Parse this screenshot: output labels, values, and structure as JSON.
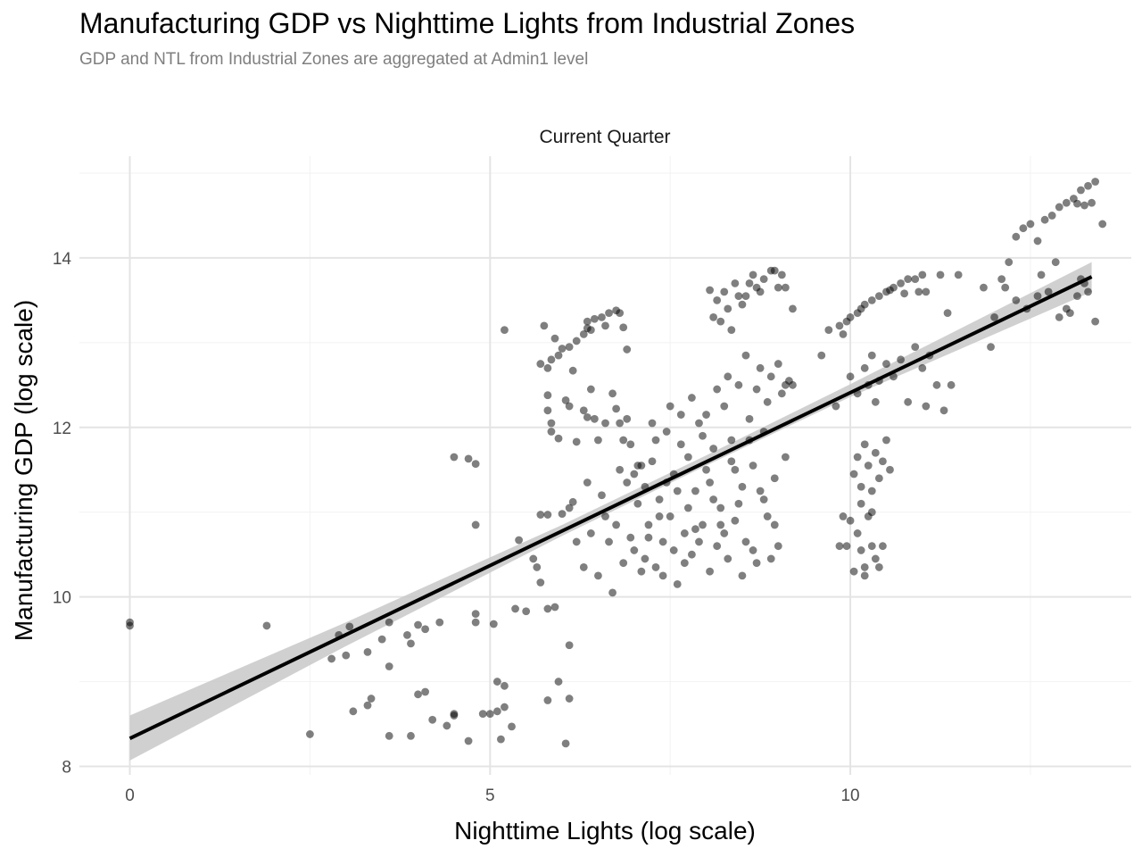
{
  "chart_data": {
    "type": "scatter",
    "title": "Manufacturing GDP vs Nighttime Lights from Industrial Zones",
    "subtitle": "GDP and NTL from Industrial Zones are aggregated at Admin1 level",
    "facet_label": "Current Quarter",
    "xlabel": "Nighttime Lights (log scale)",
    "ylabel": "Manufacturing GDP (log scale)",
    "xlim": [
      -0.7,
      13.9
    ],
    "ylim": [
      7.9,
      15.2
    ],
    "x_ticks": [
      0,
      5,
      10
    ],
    "x_tick_labels": [
      "0",
      "5",
      "10"
    ],
    "y_ticks": [
      8,
      10,
      12,
      14
    ],
    "y_tick_labels": [
      "8",
      "10",
      "12",
      "14"
    ],
    "grid": true,
    "point_color": "#000000",
    "point_alpha": 0.5,
    "regression": {
      "type": "linear",
      "x_range": [
        0,
        13.35
      ],
      "intercept": 8.33,
      "slope": 0.408,
      "ci_band": [
        {
          "x": 0,
          "lower": 8.07,
          "upper": 8.6
        },
        {
          "x": 3,
          "lower": 9.42,
          "upper": 9.7
        },
        {
          "x": 6,
          "lower": 10.72,
          "upper": 10.85
        },
        {
          "x": 8,
          "lower": 11.55,
          "upper": 11.67
        },
        {
          "x": 10,
          "lower": 12.36,
          "upper": 12.51
        },
        {
          "x": 13.35,
          "lower": 13.6,
          "upper": 13.95
        }
      ],
      "band_color": "#c8c8c8",
      "line_color": "#000000"
    },
    "points": [
      [
        0,
        9.7
      ],
      [
        0,
        9.66
      ],
      [
        1.9,
        9.66
      ],
      [
        2.5,
        8.38
      ],
      [
        2.8,
        9.27
      ],
      [
        2.9,
        9.55
      ],
      [
        3,
        9.31
      ],
      [
        3.05,
        9.65
      ],
      [
        3.1,
        8.65
      ],
      [
        3.3,
        8.72
      ],
      [
        3.35,
        8.8
      ],
      [
        3.3,
        9.35
      ],
      [
        3.5,
        9.5
      ],
      [
        3.6,
        9.7
      ],
      [
        3.6,
        9.18
      ],
      [
        3.6,
        8.36
      ],
      [
        3.85,
        9.55
      ],
      [
        3.9,
        8.36
      ],
      [
        3.9,
        9.45
      ],
      [
        4,
        9.67
      ],
      [
        4,
        8.85
      ],
      [
        4.1,
        8.88
      ],
      [
        4.1,
        9.62
      ],
      [
        4.2,
        8.55
      ],
      [
        4.3,
        9.7
      ],
      [
        4.4,
        8.48
      ],
      [
        4.5,
        8.62
      ],
      [
        4.5,
        8.6
      ],
      [
        4.5,
        11.65
      ],
      [
        4.7,
        11.63
      ],
      [
        4.7,
        8.3
      ],
      [
        4.8,
        11.57
      ],
      [
        4.8,
        10.85
      ],
      [
        4.8,
        9.8
      ],
      [
        4.8,
        9.7
      ],
      [
        4.9,
        8.62
      ],
      [
        5,
        8.62
      ],
      [
        5.05,
        9.68
      ],
      [
        5.1,
        8.65
      ],
      [
        5.2,
        8.7
      ],
      [
        5.2,
        8.95
      ],
      [
        5.1,
        9
      ],
      [
        5.3,
        8.47
      ],
      [
        5.15,
        8.32
      ],
      [
        5.35,
        9.86
      ],
      [
        5.4,
        10.67
      ],
      [
        5.5,
        9.83
      ],
      [
        5.6,
        10.45
      ],
      [
        5.65,
        10.35
      ],
      [
        5.7,
        10.17
      ],
      [
        5.7,
        10.97
      ],
      [
        5.8,
        10.97
      ],
      [
        5.8,
        9.86
      ],
      [
        5.9,
        9.88
      ],
      [
        5.8,
        8.78
      ],
      [
        5.95,
        9
      ],
      [
        6.05,
        8.27
      ],
      [
        6.1,
        9.43
      ],
      [
        6.1,
        8.8
      ],
      [
        5.2,
        13.15
      ],
      [
        5.7,
        12.75
      ],
      [
        5.75,
        13.2
      ],
      [
        5.8,
        12.7
      ],
      [
        5.85,
        12.8
      ],
      [
        5.9,
        13.05
      ],
      [
        5.95,
        12.85
      ],
      [
        6,
        12.93
      ],
      [
        6.1,
        12.95
      ],
      [
        6.15,
        12.67
      ],
      [
        6.2,
        13.02
      ],
      [
        6.3,
        13.1
      ],
      [
        6.35,
        13.17
      ],
      [
        6.35,
        13.25
      ],
      [
        6.4,
        13.15
      ],
      [
        6.45,
        13.28
      ],
      [
        6.55,
        13.3
      ],
      [
        6.6,
        13.2
      ],
      [
        6.65,
        13.35
      ],
      [
        6.75,
        13.38
      ],
      [
        6.8,
        13.35
      ],
      [
        6.85,
        13.18
      ],
      [
        6.9,
        12.92
      ],
      [
        5.8,
        12.38
      ],
      [
        5.8,
        12.2
      ],
      [
        5.85,
        12.05
      ],
      [
        5.85,
        11.95
      ],
      [
        5.95,
        11.87
      ],
      [
        6.05,
        12.32
      ],
      [
        6.1,
        12.25
      ],
      [
        6.2,
        11.83
      ],
      [
        6.3,
        12.2
      ],
      [
        6.35,
        12.12
      ],
      [
        6.4,
        12.45
      ],
      [
        6.45,
        12.1
      ],
      [
        6.5,
        11.85
      ],
      [
        6.6,
        12.05
      ],
      [
        6.7,
        12.4
      ],
      [
        6.75,
        12.22
      ],
      [
        6.8,
        12.05
      ],
      [
        6.85,
        11.85
      ],
      [
        6.9,
        12.1
      ],
      [
        6.95,
        11.8
      ],
      [
        6,
        10.98
      ],
      [
        6.1,
        11.05
      ],
      [
        6.15,
        11.12
      ],
      [
        6.2,
        10.65
      ],
      [
        6.3,
        10.35
      ],
      [
        6.35,
        11.35
      ],
      [
        6.4,
        10.75
      ],
      [
        6.5,
        10.25
      ],
      [
        6.55,
        11.2
      ],
      [
        6.6,
        10.95
      ],
      [
        6.65,
        10.65
      ],
      [
        6.7,
        10.05
      ],
      [
        6.75,
        10.85
      ],
      [
        6.8,
        11.5
      ],
      [
        6.85,
        10.4
      ],
      [
        6.9,
        11.35
      ],
      [
        6.95,
        10.7
      ],
      [
        7,
        11.45
      ],
      [
        7,
        10.55
      ],
      [
        7.05,
        11.55
      ],
      [
        7.1,
        10.3
      ],
      [
        7.15,
        11.3
      ],
      [
        7.2,
        10.85
      ],
      [
        7.25,
        11.6
      ],
      [
        7.3,
        10.35
      ],
      [
        7.35,
        11.15
      ],
      [
        7.4,
        10.65
      ],
      [
        7.45,
        11.95
      ],
      [
        7.5,
        10.95
      ],
      [
        7.55,
        11.45
      ],
      [
        7.6,
        10.15
      ],
      [
        7.65,
        11.8
      ],
      [
        7.7,
        10.75
      ],
      [
        7.75,
        11.65
      ],
      [
        7.8,
        10.5
      ],
      [
        7.85,
        11.25
      ],
      [
        7.9,
        12.05
      ],
      [
        7.95,
        10.85
      ],
      [
        8,
        11.5
      ],
      [
        8.05,
        10.3
      ],
      [
        8.1,
        11.75
      ],
      [
        8.15,
        10.6
      ],
      [
        8.2,
        11.05
      ],
      [
        8.25,
        12.25
      ],
      [
        8.3,
        10.45
      ],
      [
        8.35,
        11.85
      ],
      [
        8.4,
        10.9
      ],
      [
        8.45,
        12.5
      ],
      [
        8.5,
        11.3
      ],
      [
        8.55,
        10.65
      ],
      [
        8.6,
        12.1
      ],
      [
        8.65,
        11.55
      ],
      [
        8.7,
        10.4
      ],
      [
        8.75,
        12.7
      ],
      [
        8.8,
        11.95
      ],
      [
        8.85,
        10.95
      ],
      [
        8.9,
        12.6
      ],
      [
        8.95,
        11.4
      ],
      [
        9,
        10.6
      ],
      [
        9.05,
        12.4
      ],
      [
        9.1,
        11.65
      ],
      [
        7.05,
        11.1
      ],
      [
        7.15,
        10.45
      ],
      [
        7.25,
        12.05
      ],
      [
        7.35,
        10.95
      ],
      [
        7.45,
        11.35
      ],
      [
        7.55,
        10.55
      ],
      [
        7.65,
        12.15
      ],
      [
        7.75,
        11.05
      ],
      [
        7.85,
        10.8
      ],
      [
        7.95,
        11.9
      ],
      [
        8.05,
        11.35
      ],
      [
        8.15,
        12.45
      ],
      [
        8.25,
        10.75
      ],
      [
        8.35,
        11.6
      ],
      [
        8.45,
        11.1
      ],
      [
        8.55,
        12.85
      ],
      [
        8.65,
        10.55
      ],
      [
        8.75,
        11.25
      ],
      [
        8.85,
        12.3
      ],
      [
        8.95,
        10.85
      ],
      [
        7.1,
        11.55
      ],
      [
        7.2,
        10.7
      ],
      [
        7.3,
        11.85
      ],
      [
        7.4,
        10.25
      ],
      [
        7.5,
        12.25
      ],
      [
        7.6,
        11.25
      ],
      [
        7.7,
        10.4
      ],
      [
        7.8,
        12.35
      ],
      [
        7.9,
        10.65
      ],
      [
        8,
        12.15
      ],
      [
        8.1,
        11.15
      ],
      [
        8.2,
        10.85
      ],
      [
        8.3,
        12.6
      ],
      [
        8.4,
        11.5
      ],
      [
        8.5,
        10.25
      ],
      [
        8.6,
        11.85
      ],
      [
        8.7,
        12.45
      ],
      [
        8.8,
        11.15
      ],
      [
        8.9,
        10.45
      ],
      [
        9,
        12.75
      ],
      [
        8.1,
        13.3
      ],
      [
        8.15,
        13.5
      ],
      [
        8.2,
        13.25
      ],
      [
        8.25,
        13.6
      ],
      [
        8.3,
        13.4
      ],
      [
        8.35,
        13.15
      ],
      [
        8.4,
        13.7
      ],
      [
        8.45,
        13.55
      ],
      [
        8.5,
        13.45
      ],
      [
        8.6,
        13.7
      ],
      [
        8.7,
        13.65
      ],
      [
        8.8,
        13.75
      ],
      [
        8.9,
        13.85
      ],
      [
        9,
        13.65
      ],
      [
        9.05,
        13.8
      ],
      [
        9.1,
        13.65
      ],
      [
        9.2,
        13.4
      ],
      [
        8.05,
        13.62
      ],
      [
        8.55,
        13.55
      ],
      [
        8.65,
        13.8
      ],
      [
        8.75,
        13.6
      ],
      [
        8.95,
        13.85
      ],
      [
        9.1,
        12.5
      ],
      [
        9.15,
        12.55
      ],
      [
        9.2,
        12.5
      ],
      [
        9.6,
        12.85
      ],
      [
        9.8,
        12.25
      ],
      [
        9.7,
        13.15
      ],
      [
        9.85,
        13.2
      ],
      [
        9.9,
        13.1
      ],
      [
        9.95,
        13.25
      ],
      [
        10,
        13.3
      ],
      [
        10.1,
        13.35
      ],
      [
        10.15,
        13.4
      ],
      [
        10.2,
        13.45
      ],
      [
        10.3,
        13.5
      ],
      [
        10.4,
        13.55
      ],
      [
        10.5,
        13.6
      ],
      [
        10.6,
        13.65
      ],
      [
        10.7,
        13.7
      ],
      [
        10.8,
        13.75
      ],
      [
        10.9,
        13.75
      ],
      [
        11,
        13.8
      ],
      [
        10.55,
        13.62
      ],
      [
        10.75,
        13.58
      ],
      [
        10.95,
        13.6
      ],
      [
        11.05,
        13.6
      ],
      [
        11.25,
        13.8
      ],
      [
        11.35,
        13.35
      ],
      [
        10,
        12.6
      ],
      [
        10.1,
        12.4
      ],
      [
        10.2,
        12.7
      ],
      [
        10.25,
        12.5
      ],
      [
        10.3,
        12.85
      ],
      [
        10.4,
        12.55
      ],
      [
        10.5,
        12.75
      ],
      [
        10.6,
        12.6
      ],
      [
        10.7,
        12.8
      ],
      [
        10.8,
        12.3
      ],
      [
        10.9,
        12.95
      ],
      [
        11,
        12.7
      ],
      [
        11.1,
        12.85
      ],
      [
        11.2,
        12.5
      ],
      [
        11.3,
        12.2
      ],
      [
        11.4,
        12.5
      ],
      [
        11.05,
        12.25
      ],
      [
        10.35,
        12.3
      ],
      [
        9.85,
        10.6
      ],
      [
        9.9,
        10.95
      ],
      [
        9.95,
        10.6
      ],
      [
        10,
        10.9
      ],
      [
        10.05,
        10.3
      ],
      [
        10.1,
        10.75
      ],
      [
        10.15,
        10.55
      ],
      [
        10.2,
        10.35
      ],
      [
        10.25,
        10.95
      ],
      [
        10.3,
        10.6
      ],
      [
        10.35,
        10.45
      ],
      [
        10.4,
        10.35
      ],
      [
        10.45,
        10.6
      ],
      [
        10.05,
        11.45
      ],
      [
        10.1,
        11.65
      ],
      [
        10.15,
        11.3
      ],
      [
        10.2,
        11.8
      ],
      [
        10.25,
        11.55
      ],
      [
        10.3,
        11.25
      ],
      [
        10.35,
        11.7
      ],
      [
        10.4,
        11.4
      ],
      [
        10.45,
        11.6
      ],
      [
        10.5,
        11.85
      ],
      [
        10.55,
        11.5
      ],
      [
        10.15,
        11.1
      ],
      [
        10.3,
        11
      ],
      [
        10.2,
        10.25
      ],
      [
        12.15,
        13.65
      ],
      [
        12.3,
        13.5
      ],
      [
        12.45,
        13.4
      ],
      [
        12.6,
        13.55
      ],
      [
        12.75,
        13.6
      ],
      [
        12.9,
        13.3
      ],
      [
        13,
        13.4
      ],
      [
        13.15,
        13.55
      ],
      [
        13.25,
        13.7
      ],
      [
        13.3,
        13.6
      ],
      [
        13.4,
        13.25
      ],
      [
        12.65,
        13.8
      ],
      [
        12.85,
        13.95
      ],
      [
        13.05,
        13.35
      ],
      [
        13.2,
        13.75
      ],
      [
        12.2,
        13.95
      ],
      [
        12.3,
        14.25
      ],
      [
        12.4,
        14.35
      ],
      [
        12.5,
        14.4
      ],
      [
        12.6,
        14.2
      ],
      [
        12.7,
        14.45
      ],
      [
        12.8,
        14.5
      ],
      [
        12.9,
        14.6
      ],
      [
        13,
        14.65
      ],
      [
        13.1,
        14.7
      ],
      [
        13.2,
        14.8
      ],
      [
        13.3,
        14.85
      ],
      [
        13.35,
        14.65
      ],
      [
        13.25,
        14.62
      ],
      [
        13.15,
        14.64
      ],
      [
        13.4,
        14.9
      ],
      [
        13.5,
        14.4
      ],
      [
        11.5,
        13.8
      ],
      [
        11.85,
        13.65
      ],
      [
        12,
        13.3
      ],
      [
        11.95,
        12.95
      ],
      [
        12.1,
        13.75
      ]
    ]
  }
}
